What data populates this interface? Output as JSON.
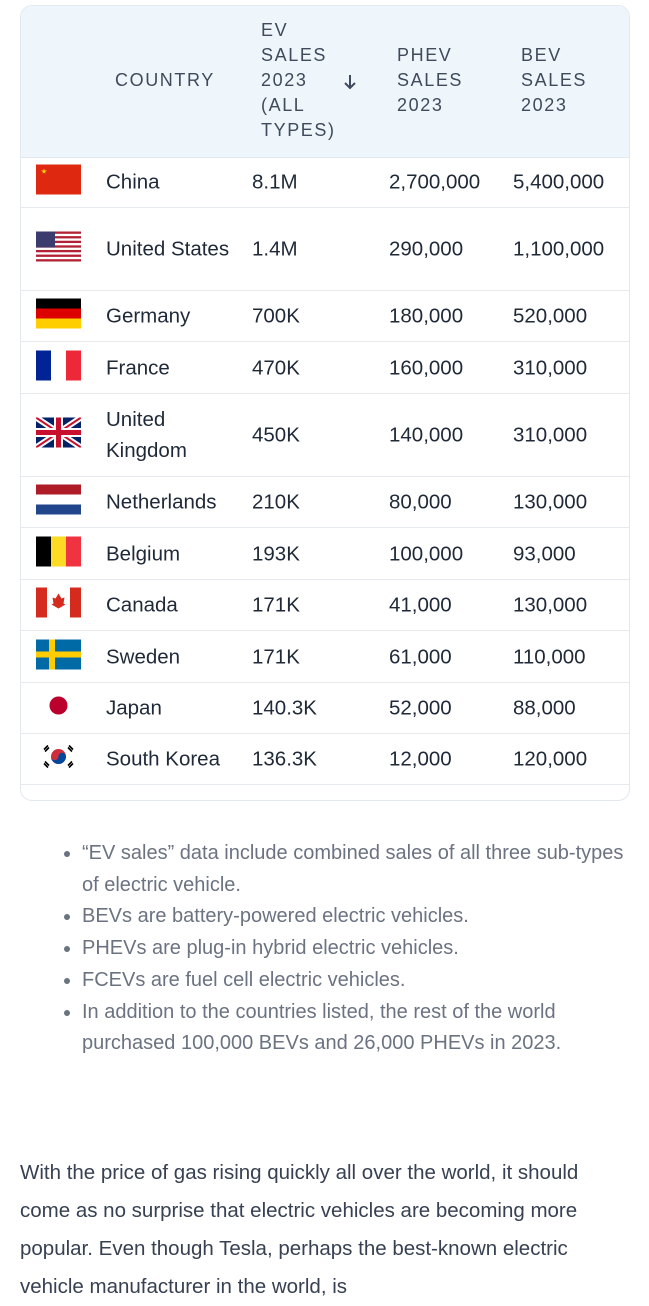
{
  "table": {
    "columns": [
      "COUNTRY",
      "EV SALES 2023 (ALL TYPES)",
      "PHEV SALES 2023",
      "BEV SALES 2023"
    ],
    "rows": [
      [
        "China",
        "8.1M",
        "2,700,000",
        "5,400,000"
      ],
      [
        "United States",
        "1.4M",
        "290,000",
        "1,100,000"
      ],
      [
        "Germany",
        "700K",
        "180,000",
        "520,000"
      ],
      [
        "France",
        "470K",
        "160,000",
        "310,000"
      ],
      [
        "United Kingdom",
        "450K",
        "140,000",
        "310,000"
      ],
      [
        "Netherlands",
        "210K",
        "80,000",
        "130,000"
      ],
      [
        "Belgium",
        "193K",
        "100,000",
        "93,000"
      ],
      [
        "Canada",
        "171K",
        "41,000",
        "130,000"
      ],
      [
        "Sweden",
        "171K",
        "61,000",
        "110,000"
      ],
      [
        "Japan",
        "140.3K",
        "52,000",
        "88,000"
      ],
      [
        "South Korea",
        "136.3K",
        "12,000",
        "120,000"
      ]
    ]
  },
  "notes": [
    "“EV sales” data include combined sales of all three sub-types of electric vehicle.",
    "BEVs are battery-powered electric vehicles.",
    "PHEVs are plug-in hybrid electric vehicles.",
    "FCEVs are fuel cell electric vehicles.",
    "In addition to the countries listed, the rest of the world purchased 100,000 BEVs and 26,000 PHEVs in 2023."
  ],
  "paragraph": "With the price of gas rising quickly all over the world, it should come as no surprise that electric vehicles are becoming more popular. Even though Tesla, perhaps the best-known electric vehicle manufacturer in the world, is"
}
